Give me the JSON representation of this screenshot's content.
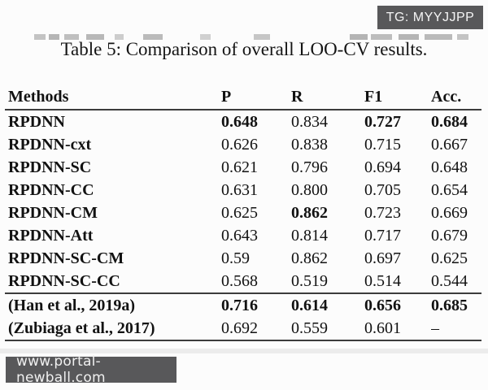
{
  "overlay": {
    "badge_label": "TG: MYYJJPP",
    "watermark_label": "www.portal-newball.com"
  },
  "caption": "Table 5: Comparison of overall LOO-CV results.",
  "table": {
    "columns": [
      {
        "label": "Methods"
      },
      {
        "label": "P"
      },
      {
        "label": "R"
      },
      {
        "label": "F1"
      },
      {
        "label": "Acc."
      }
    ],
    "rows": [
      {
        "method": "RPDNN",
        "values": [
          "0.648",
          "0.834",
          "0.727",
          "0.684"
        ],
        "bold_values": [
          true,
          false,
          true,
          true
        ],
        "section": "main"
      },
      {
        "method": "RPDNN-cxt",
        "values": [
          "0.626",
          "0.838",
          "0.715",
          "0.667"
        ],
        "bold_values": [
          false,
          false,
          false,
          false
        ],
        "section": "main"
      },
      {
        "method": "RPDNN-SC",
        "values": [
          "0.621",
          "0.796",
          "0.694",
          "0.648"
        ],
        "bold_values": [
          false,
          false,
          false,
          false
        ],
        "section": "main"
      },
      {
        "method": "RPDNN-CC",
        "values": [
          "0.631",
          "0.800",
          "0.705",
          "0.654"
        ],
        "bold_values": [
          false,
          false,
          false,
          false
        ],
        "section": "main"
      },
      {
        "method": "RPDNN-CM",
        "values": [
          "0.625",
          "0.862",
          "0.723",
          "0.669"
        ],
        "bold_values": [
          false,
          true,
          false,
          false
        ],
        "section": "main"
      },
      {
        "method": "RPDNN-Att",
        "values": [
          "0.643",
          "0.814",
          "0.717",
          "0.679"
        ],
        "bold_values": [
          false,
          false,
          false,
          false
        ],
        "section": "main"
      },
      {
        "method": "RPDNN-SC-CM",
        "values": [
          "0.59",
          "0.862",
          "0.697",
          "0.625"
        ],
        "bold_values": [
          false,
          false,
          false,
          false
        ],
        "section": "main"
      },
      {
        "method": "RPDNN-SC-CC",
        "values": [
          "0.568",
          "0.519",
          "0.514",
          "0.544"
        ],
        "bold_values": [
          false,
          false,
          false,
          false
        ],
        "section": "main"
      },
      {
        "method": "(Han et al., 2019a)",
        "values": [
          "0.716",
          "0.614",
          "0.656",
          "0.685"
        ],
        "bold_values": [
          true,
          true,
          true,
          true
        ],
        "section": "baseline"
      },
      {
        "method": "(Zubiaga et al., 2017)",
        "values": [
          "0.692",
          "0.559",
          "0.601",
          "–"
        ],
        "bold_values": [
          false,
          false,
          false,
          false
        ],
        "section": "baseline"
      }
    ]
  },
  "colors": {
    "overlay_bg": "#58585a",
    "overlay_text": "#f5f5f5",
    "text": "#121212",
    "rule": "#3c3c3c"
  }
}
